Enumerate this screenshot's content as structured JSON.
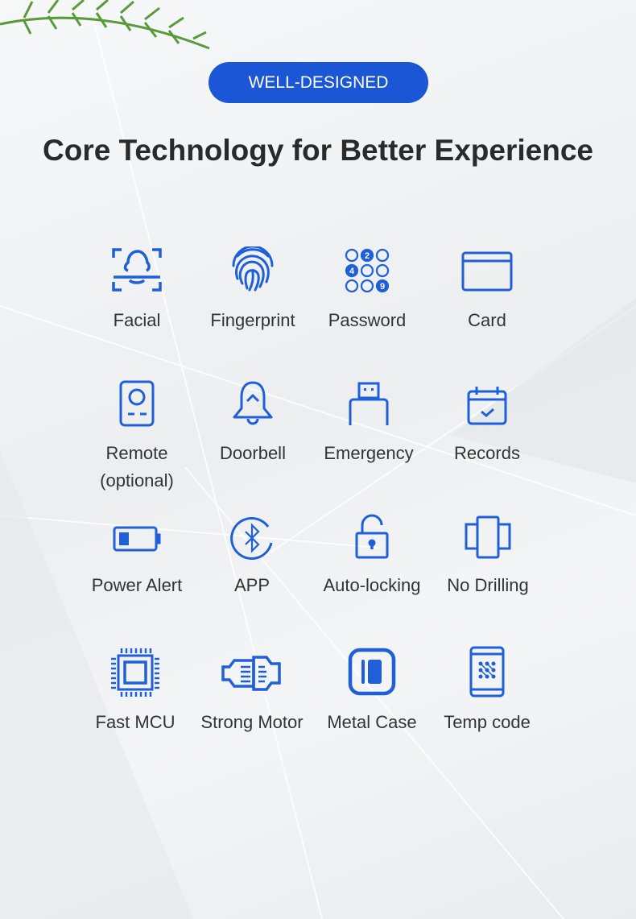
{
  "badge": "WELL-DESIGNED",
  "title": "Core Technology for Better Experience",
  "colors": {
    "accent": "#1f5fd8",
    "badge": "#1a56d6",
    "text": "#333333"
  },
  "features": [
    {
      "label": "Facial",
      "icon": "face-scan-icon"
    },
    {
      "label": "Fingerprint",
      "icon": "fingerprint-icon"
    },
    {
      "label": "Password",
      "icon": "keypad-icon",
      "keypad_digits": [
        "2",
        "4",
        "9"
      ]
    },
    {
      "label": "Card",
      "icon": "card-icon"
    },
    {
      "label": "Remote (optional)",
      "line1": "Remote",
      "line2": "(optional)",
      "icon": "remote-icon"
    },
    {
      "label": "Doorbell",
      "icon": "bell-icon"
    },
    {
      "label": "Emergency",
      "icon": "usb-icon"
    },
    {
      "label": "Records",
      "icon": "calendar-check-icon"
    },
    {
      "label": "Power Alert",
      "icon": "battery-low-icon"
    },
    {
      "label": "APP",
      "icon": "bluetooth-icon"
    },
    {
      "label": "Auto-locking",
      "icon": "padlock-icon"
    },
    {
      "label": "No Drilling",
      "icon": "door-panels-icon"
    },
    {
      "label": "Fast MCU",
      "icon": "chip-icon"
    },
    {
      "label": "Strong Motor",
      "icon": "motor-icon"
    },
    {
      "label": "Metal Case",
      "icon": "metal-case-icon"
    },
    {
      "label": "Temp code",
      "icon": "phone-code-icon"
    }
  ]
}
